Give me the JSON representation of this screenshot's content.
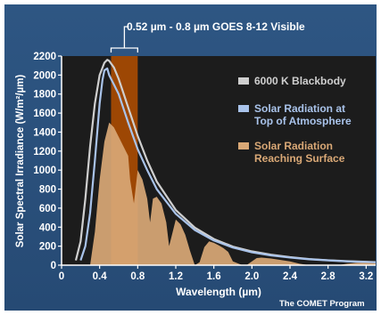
{
  "chart_data": {
    "type": "area",
    "title": "0.52 µm - 0.8 µm GOES 8-12 Visible",
    "xlabel": "Wavelength (µm)",
    "ylabel": "Solar Spectral Irradiance (W/m²/µm)",
    "xlim": [
      0,
      3.3
    ],
    "ylim": [
      0,
      2200
    ],
    "x_ticks": [
      0,
      0.4,
      0.8,
      1.2,
      1.6,
      2.0,
      2.4,
      2.8,
      3.2
    ],
    "x_tick_labels": [
      "0",
      "0.4",
      "0.8",
      "1.2",
      "1.6",
      "2.0",
      "2.4",
      "2.8",
      "3.2"
    ],
    "y_ticks": [
      0,
      200,
      400,
      600,
      800,
      1000,
      1200,
      1400,
      1600,
      1800,
      2000,
      2200
    ],
    "y_tick_labels": [
      "0",
      "200",
      "400",
      "600",
      "800",
      "1000",
      "1200",
      "1400",
      "1600",
      "1800",
      "2000",
      "2200"
    ],
    "highlight_band": [
      0.52,
      0.8
    ],
    "series": [
      {
        "name": "6000 K Blackbody",
        "color": "#cfcfcf",
        "kind": "line",
        "x": [
          0.15,
          0.2,
          0.25,
          0.3,
          0.35,
          0.4,
          0.45,
          0.48,
          0.5,
          0.55,
          0.6,
          0.7,
          0.8,
          0.9,
          1.0,
          1.2,
          1.4,
          1.6,
          1.8,
          2.0,
          2.2,
          2.4,
          2.6,
          2.8,
          3.0,
          3.2,
          3.3
        ],
        "values": [
          50,
          250,
          700,
          1250,
          1700,
          2000,
          2130,
          2160,
          2150,
          2080,
          1960,
          1660,
          1360,
          1100,
          880,
          580,
          395,
          275,
          195,
          145,
          110,
          85,
          65,
          52,
          42,
          35,
          32
        ]
      },
      {
        "name": "Solar Radiation at Top of Atmosphere",
        "color": "#a9c3ea",
        "kind": "line",
        "x": [
          0.2,
          0.25,
          0.3,
          0.35,
          0.4,
          0.43,
          0.45,
          0.48,
          0.5,
          0.55,
          0.6,
          0.7,
          0.8,
          0.9,
          1.0,
          1.2,
          1.4,
          1.6,
          1.8,
          2.0,
          2.2,
          2.4,
          2.6,
          2.8,
          3.0,
          3.2,
          3.3
        ],
        "values": [
          50,
          200,
          550,
          1100,
          1700,
          1950,
          2050,
          2070,
          2000,
          1900,
          1800,
          1500,
          1220,
          1000,
          800,
          540,
          370,
          260,
          185,
          135,
          103,
          80,
          62,
          50,
          40,
          33,
          30
        ]
      },
      {
        "name": "Solar Radiation Reaching Surface",
        "color": "#d9a876",
        "kind": "area",
        "x": [
          0.3,
          0.35,
          0.4,
          0.45,
          0.5,
          0.55,
          0.6,
          0.65,
          0.7,
          0.72,
          0.76,
          0.8,
          0.85,
          0.9,
          0.93,
          0.96,
          1.0,
          1.05,
          1.1,
          1.13,
          1.16,
          1.2,
          1.25,
          1.3,
          1.35,
          1.4,
          1.45,
          1.5,
          1.55,
          1.6,
          1.65,
          1.7,
          1.75,
          1.8,
          1.9,
          1.95,
          2.0,
          2.05,
          2.1,
          2.2,
          2.3,
          2.4,
          2.5,
          2.6,
          2.7,
          2.9,
          3.0,
          3.1,
          3.2,
          3.3
        ],
        "values": [
          0,
          350,
          900,
          1300,
          1500,
          1450,
          1350,
          1250,
          1150,
          900,
          650,
          1000,
          900,
          700,
          450,
          700,
          720,
          650,
          450,
          200,
          320,
          480,
          430,
          320,
          150,
          0,
          30,
          190,
          250,
          235,
          210,
          180,
          140,
          40,
          0,
          5,
          40,
          75,
          80,
          70,
          55,
          40,
          15,
          0,
          0,
          0,
          15,
          25,
          25,
          20
        ]
      }
    ],
    "legend_position": "top-right"
  },
  "labels": {
    "band_label": "0.52 µm - 0.8 µm GOES 8-12 Visible",
    "legend_blackbody": "6000 K Blackbody",
    "legend_toa_1": "Solar Radiation at",
    "legend_toa_2": "Top of Atmosphere",
    "legend_surface_1": "Solar Radiation",
    "legend_surface_2": "Reaching Surface",
    "credit": "The COMET Program"
  }
}
